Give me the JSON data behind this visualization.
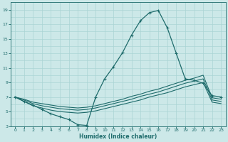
{
  "xlabel": "Humidex (Indice chaleur)",
  "background_color": "#cce8e8",
  "grid_color": "#aad4d4",
  "line_color": "#1e6b6b",
  "xlim": [
    -0.5,
    23.5
  ],
  "ylim": [
    3,
    20
  ],
  "xticks": [
    0,
    1,
    2,
    3,
    4,
    5,
    6,
    7,
    8,
    9,
    10,
    11,
    12,
    13,
    14,
    15,
    16,
    17,
    18,
    19,
    20,
    21,
    22,
    23
  ],
  "yticks": [
    3,
    5,
    7,
    9,
    11,
    13,
    15,
    17,
    19
  ],
  "line1_x": [
    0,
    1,
    2,
    3,
    4,
    5,
    6,
    7,
    8,
    9,
    10,
    11,
    12,
    13,
    14,
    15,
    16,
    17,
    18,
    19,
    20,
    21,
    22,
    23
  ],
  "line1_y": [
    7.0,
    6.4,
    5.9,
    5.3,
    4.7,
    4.3,
    3.9,
    3.2,
    3.1,
    7.0,
    9.5,
    11.2,
    13.1,
    15.5,
    17.5,
    18.6,
    18.9,
    16.5,
    13.0,
    9.5,
    9.3,
    8.9,
    7.2,
    7.0
  ],
  "line2_x": [
    0,
    1,
    2,
    3,
    4,
    5,
    6,
    7,
    8,
    9,
    10,
    11,
    12,
    13,
    14,
    15,
    16,
    17,
    18,
    19,
    20,
    21,
    22,
    23
  ],
  "line2_y": [
    7.0,
    6.7,
    6.3,
    6.1,
    5.9,
    5.7,
    5.6,
    5.5,
    5.6,
    5.8,
    6.1,
    6.4,
    6.7,
    7.1,
    7.4,
    7.8,
    8.1,
    8.5,
    8.9,
    9.3,
    9.6,
    10.0,
    6.9,
    6.7
  ],
  "line3_x": [
    0,
    1,
    2,
    3,
    4,
    5,
    6,
    7,
    8,
    9,
    10,
    11,
    12,
    13,
    14,
    15,
    16,
    17,
    18,
    19,
    20,
    21,
    22,
    23
  ],
  "line3_y": [
    7.0,
    6.6,
    6.1,
    5.8,
    5.6,
    5.4,
    5.3,
    5.2,
    5.3,
    5.5,
    5.8,
    6.1,
    6.4,
    6.7,
    7.1,
    7.4,
    7.7,
    8.1,
    8.5,
    8.9,
    9.2,
    9.5,
    6.6,
    6.4
  ],
  "line4_x": [
    0,
    1,
    2,
    3,
    4,
    5,
    6,
    7,
    8,
    9,
    10,
    11,
    12,
    13,
    14,
    15,
    16,
    17,
    18,
    19,
    20,
    21,
    22,
    23
  ],
  "line4_y": [
    7.0,
    6.4,
    5.8,
    5.5,
    5.2,
    5.0,
    4.9,
    4.8,
    4.9,
    5.1,
    5.4,
    5.7,
    6.0,
    6.3,
    6.6,
    7.0,
    7.3,
    7.6,
    8.0,
    8.4,
    8.7,
    9.0,
    6.3,
    6.1
  ]
}
